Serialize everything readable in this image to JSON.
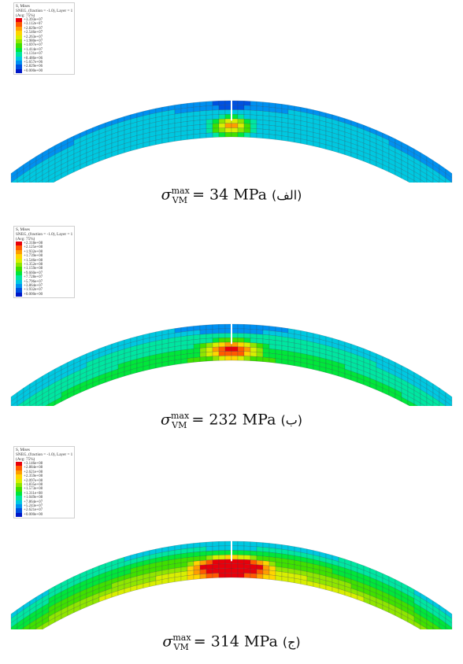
{
  "panels": [
    {
      "legend": {
        "header": [
          "S, Mises",
          "SNEG, (fraction = -1.0), Layer = 1",
          "(Avg: 75%)"
        ],
        "values": [
          "+3.393e+07",
          "+3.112e+07",
          "+2.829e+07",
          "+2.546e+07",
          "+2.263e+07",
          "+1.980e+07",
          "+1.697e+07",
          "+1.414e+07",
          "+1.131e+07",
          "+8.486e+06",
          "+5.657e+06",
          "+2.829e+06",
          "+0.000e+00"
        ]
      },
      "caption": {
        "symbol": "σ",
        "sub": "VM",
        "sup": "max",
        "value": "= 34 MPa",
        "tag": "(الف)"
      },
      "level": 0.15
    },
    {
      "legend": {
        "header": [
          "S, Mises",
          "SNEG, (fraction = -1.0), Layer = 1",
          "(Avg: 75%)"
        ],
        "values": [
          "+2.318e+08",
          "+2.125e+08",
          "+1.932e+08",
          "+1.739e+08",
          "+1.546e+08",
          "+1.352e+08",
          "+1.159e+08",
          "+9.660e+07",
          "+7.728e+07",
          "+5.796e+07",
          "+3.864e+07",
          "+1.932e+07",
          "+0.000e+00"
        ]
      },
      "caption": {
        "symbol": "σ",
        "sub": "VM",
        "sup": "max",
        "value": "= 232 MPa",
        "tag": "(ب)"
      },
      "level": 0.45
    },
    {
      "legend": {
        "header": [
          "S, Mises",
          "SNEG, (fraction = -1.0), Layer = 1",
          "(Avg: 75%)"
        ],
        "values": [
          "+3.146e+08",
          "+2.884e+08",
          "+2.621e+08",
          "+2.359e+08",
          "+2.097e+08",
          "+1.835e+08",
          "+1.573e+08",
          "+1.311e+08",
          "+1.049e+08",
          "+7.864e+07",
          "+5.243e+07",
          "+2.621e+07",
          "+0.000e+00"
        ]
      },
      "caption": {
        "symbol": "σ",
        "sub": "VM",
        "sup": "max",
        "value": "= 314 MPa",
        "tag": "(ج)"
      },
      "level": 0.85
    }
  ],
  "colors": [
    "#e8000b",
    "#ff5a00",
    "#ff9d00",
    "#ffd500",
    "#d8ef00",
    "#8fe600",
    "#3fe000",
    "#00e63a",
    "#00e6a0",
    "#00c8e0",
    "#0090f0",
    "#0050e0",
    "#0018c8"
  ]
}
